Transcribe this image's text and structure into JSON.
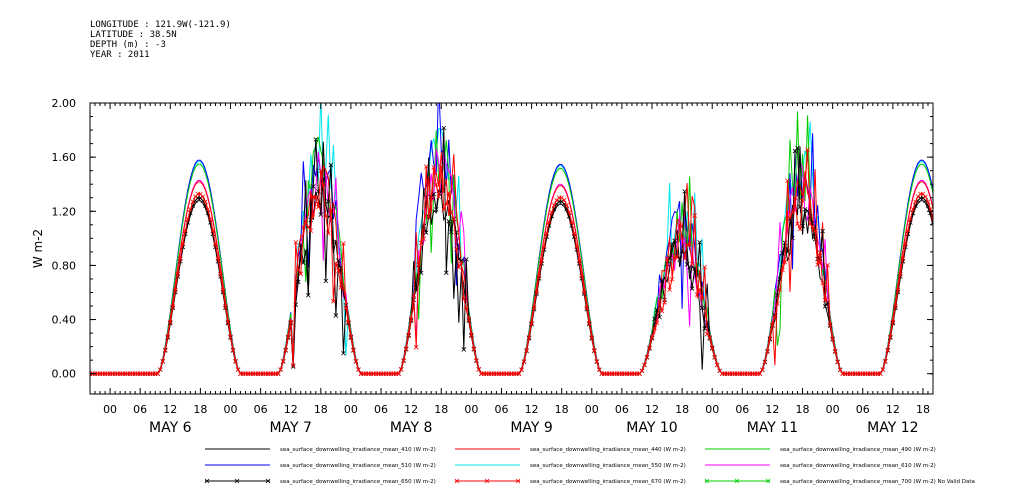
{
  "header": {
    "longitude": "LONGITUDE : 121.9W(-121.9)",
    "latitude": "LATITUDE : 38.5N",
    "depth": "DEPTH (m) : -3",
    "year": "YEAR : 2011"
  },
  "chart_data": {
    "type": "line",
    "ylabel": "W m-2",
    "ylim": [
      -0.15,
      2.0
    ],
    "yticks": [
      0.0,
      0.4,
      0.8,
      1.2,
      1.6,
      2.0
    ],
    "ytick_labels": [
      "0.00",
      "0.40",
      "0.80",
      "1.20",
      "1.60",
      "2.00"
    ],
    "xlim_hours": [
      -4,
      164
    ],
    "hour_tick_labels": [
      "00",
      "06",
      "12",
      "18",
      "00",
      "06",
      "12",
      "18",
      "00",
      "06",
      "12",
      "18",
      "00",
      "06",
      "12",
      "18",
      "00",
      "06",
      "12",
      "18",
      "00",
      "06",
      "12",
      "18",
      "00",
      "06",
      "12",
      "18"
    ],
    "day_labels": [
      "MAY  6",
      "MAY  7",
      "MAY  8",
      "MAY  9",
      "MAY 10",
      "MAY 11",
      "MAY 12"
    ],
    "days": [
      {
        "label": "MAY  6",
        "day_start_hour": 9.5,
        "day_end_hour": 26,
        "noon_hour": 18,
        "peak_scale": 1.0,
        "noisy": false
      },
      {
        "label": "MAY  7",
        "day_start_hour": 33.5,
        "day_end_hour": 50,
        "noon_hour": 42,
        "peak_scale": 1.0,
        "noisy": true
      },
      {
        "label": "MAY  8",
        "day_start_hour": 57.5,
        "day_end_hour": 74,
        "noon_hour": 66,
        "peak_scale": 1.05,
        "noisy": true
      },
      {
        "label": "MAY  9",
        "day_start_hour": 81.5,
        "day_end_hour": 98,
        "noon_hour": 90,
        "peak_scale": 0.98,
        "noisy": false
      },
      {
        "label": "MAY 10",
        "day_start_hour": 105.5,
        "day_end_hour": 122,
        "noon_hour": 114,
        "peak_scale": 0.7,
        "noisy": true
      },
      {
        "label": "MAY 11",
        "day_start_hour": 129.5,
        "day_end_hour": 146,
        "noon_hour": 138,
        "peak_scale": 0.95,
        "noisy": true
      },
      {
        "label": "MAY 12",
        "day_start_hour": 153.5,
        "day_end_hour": 170,
        "noon_hour": 162,
        "peak_scale": 1.0,
        "noisy": false
      }
    ],
    "series": [
      {
        "name": "sea_surface_downwelling_irradiance_mean_410 (W m-2)",
        "color": "#000000",
        "peak": 1.28,
        "marker": "none"
      },
      {
        "name": "sea_surface_downwelling_irradiance_mean_440 (W m-2)",
        "color": "#ff0000",
        "peak": 1.42,
        "marker": "none"
      },
      {
        "name": "sea_surface_downwelling_irradiance_mean_490 (W m-2)",
        "color": "#00cc00",
        "peak": 1.55,
        "marker": "none"
      },
      {
        "name": "sea_surface_downwelling_irradiance_mean_510 (W m-2)",
        "color": "#0000ff",
        "peak": 1.58,
        "marker": "none"
      },
      {
        "name": "sea_surface_downwelling_irradiance_mean_550 (W m-2)",
        "color": "#00e5ee",
        "peak": 1.57,
        "marker": "none"
      },
      {
        "name": "sea_surface_downwelling_irradiance_mean_610 (W m-2)",
        "color": "#ff00ff",
        "peak": 1.43,
        "marker": "none"
      },
      {
        "name": "sea_surface_downwelling_irradiance_mean_650 (W m-2)",
        "color": "#000000",
        "peak": 1.3,
        "marker": "x"
      },
      {
        "name": "sea_surface_downwelling_irradiance_mean_670 (W m-2)",
        "color": "#ff0000",
        "peak": 1.33,
        "marker": "x"
      },
      {
        "name": "sea_surface_downwelling_irradiance_mean_700 (W m-2) No Valid Data",
        "color": "#00cc00",
        "peak": 0,
        "marker": "x"
      }
    ]
  }
}
